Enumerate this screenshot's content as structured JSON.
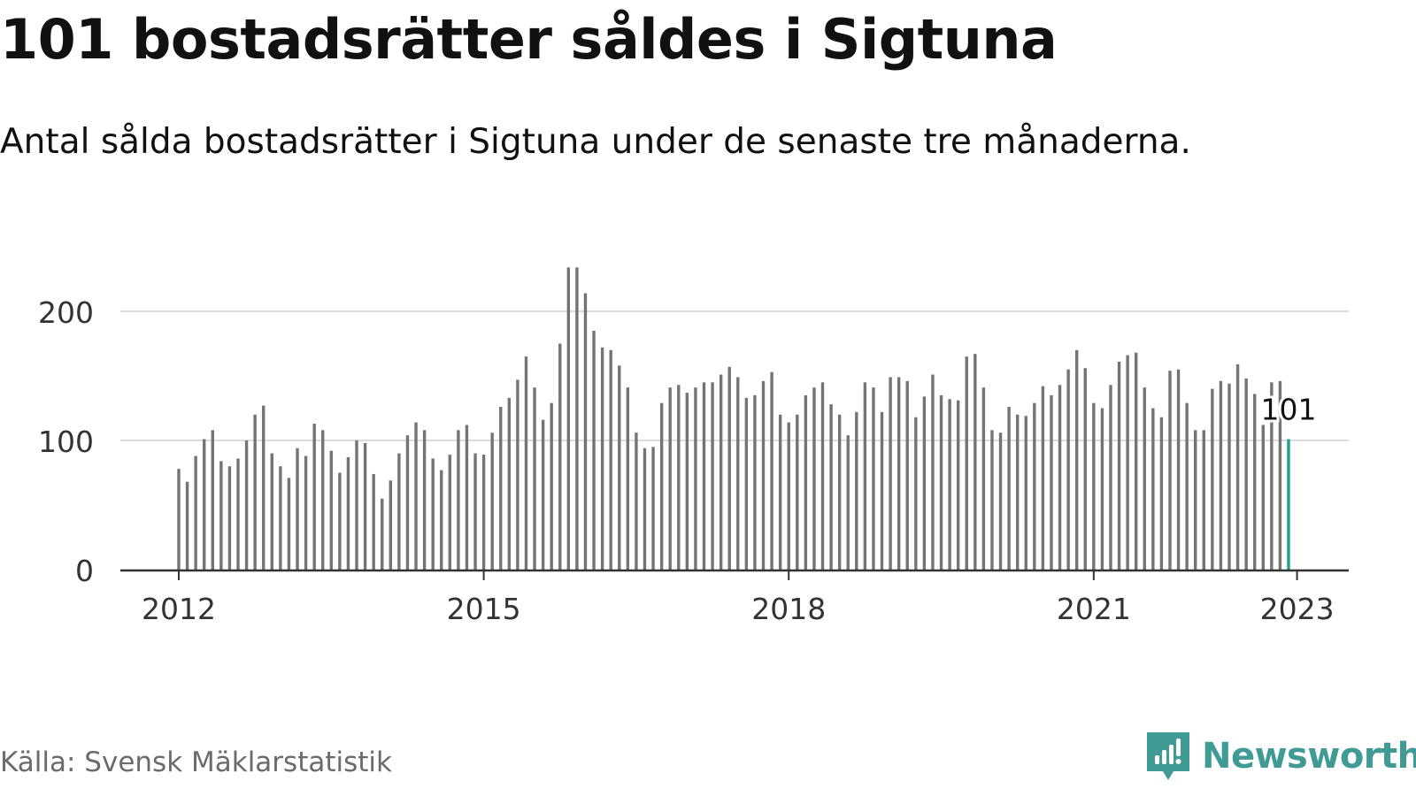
{
  "title": "101 bostadsrätter såldes i Sigtuna",
  "subtitle": "Antal sålda bostadsrätter i Sigtuna under de senaste tre månaderna.",
  "source": "Källa: Svensk Mäklarstatistik",
  "brand": {
    "name": "Newsworthy",
    "icon": "newsworthy-logo-icon",
    "color": "#3f9b93"
  },
  "colors": {
    "bar": "#747474",
    "highlight": "#1f9e92",
    "grid": "#dcdcdc",
    "axis": "#333333"
  },
  "chart_data": {
    "type": "bar",
    "title": "",
    "xlabel": "",
    "ylabel": "",
    "ylim": [
      0,
      235
    ],
    "yticks": [
      0,
      100,
      200
    ],
    "xticks": [
      "2012",
      "2015",
      "2018",
      "2021",
      "2023"
    ],
    "grid": true,
    "start": "2012-01",
    "frequency": "monthly",
    "highlight": {
      "label": "101",
      "value": 101
    },
    "values": [
      78,
      68,
      88,
      101,
      108,
      84,
      80,
      86,
      100,
      120,
      127,
      90,
      80,
      71,
      94,
      88,
      113,
      108,
      92,
      75,
      87,
      100,
      98,
      74,
      55,
      69,
      90,
      104,
      114,
      108,
      86,
      77,
      89,
      108,
      112,
      90,
      89,
      106,
      126,
      133,
      147,
      165,
      141,
      116,
      129,
      175,
      234,
      234,
      214,
      185,
      172,
      170,
      158,
      141,
      106,
      94,
      95,
      129,
      141,
      143,
      137,
      141,
      145,
      145,
      151,
      157,
      149,
      133,
      135,
      146,
      153,
      120,
      114,
      120,
      135,
      141,
      145,
      128,
      120,
      104,
      122,
      145,
      141,
      122,
      149,
      149,
      146,
      118,
      134,
      151,
      135,
      132,
      131,
      165,
      167,
      141,
      108,
      106,
      126,
      120,
      119,
      129,
      142,
      135,
      143,
      155,
      170,
      156,
      129,
      125,
      143,
      161,
      166,
      168,
      141,
      125,
      118,
      154,
      155,
      129,
      108,
      108,
      140,
      146,
      144,
      159,
      148,
      136,
      112,
      145,
      146,
      101
    ]
  }
}
